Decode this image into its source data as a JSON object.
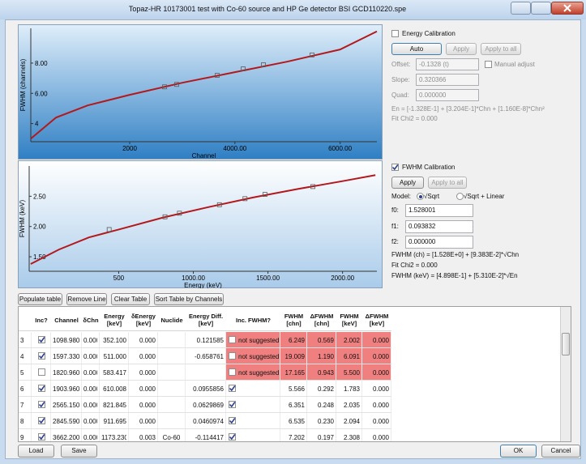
{
  "window": {
    "title": "Topaz-HR 10173001 test with Co-60 source and HP Ge detector BSI GCD110220.spe"
  },
  "plots": [
    {
      "type": "line",
      "y_label": "FWHM (channels)",
      "x_label": "Channel",
      "xlim": [
        120,
        6700
      ],
      "ylim": [
        2.8,
        10.3
      ],
      "xticks": [
        2000,
        {
          "value": 4000,
          "label": "4000.00"
        },
        {
          "value": 6000,
          "label": "6000.00"
        }
      ],
      "yticks": [
        4,
        {
          "value": 6,
          "label": "6.00"
        },
        {
          "value": 8,
          "label": "8.00"
        }
      ],
      "curve": {
        "x": [
          120,
          600,
          1200,
          2000,
          3000,
          4000,
          5000,
          6000,
          6700
        ],
        "y": [
          3.0,
          4.4,
          5.2,
          5.9,
          6.7,
          7.4,
          8.1,
          8.9,
          10.1
        ]
      },
      "points": {
        "x": [
          2663,
          2894,
          3664,
          4157,
          4543,
          5467
        ],
        "y": [
          6.43,
          6.59,
          7.19,
          7.62,
          7.89,
          8.54
        ]
      },
      "color": "#b3191c",
      "background": [
        "#dfeefa",
        "#2f7fc4"
      ]
    },
    {
      "type": "line",
      "y_label": "FWHM (keV)",
      "x_label": "Energy (keV)",
      "xlim": [
        -100,
        2230
      ],
      "ylim": [
        1.26,
        3.0
      ],
      "xticks": [
        500,
        {
          "value": 1000,
          "label": "1000.00"
        },
        {
          "value": 1500,
          "label": "1500.00"
        },
        {
          "value": 2000,
          "label": "2000.00"
        }
      ],
      "yticks": [
        {
          "value": 1.5,
          "label": "1.50"
        },
        {
          "value": 2,
          "label": "2.00"
        },
        {
          "value": 2.5,
          "label": "2.50"
        }
      ],
      "curve": {
        "x": [
          -90,
          100,
          300,
          500,
          800,
          1100,
          1400,
          1700,
          2000,
          2220
        ],
        "y": [
          1.38,
          1.62,
          1.82,
          1.95,
          2.15,
          2.32,
          2.48,
          2.62,
          2.75,
          2.85
        ]
      },
      "points": {
        "x": [
          436,
          810,
          907,
          1175,
          1346,
          1480,
          1801
        ],
        "y": [
          1.95,
          2.16,
          2.22,
          2.36,
          2.46,
          2.53,
          2.66
        ]
      },
      "color": "#b3191c",
      "background": [
        "#ffffff",
        "#a9cbea"
      ]
    }
  ],
  "energy_calibration": {
    "label": "Energy Calibration",
    "checked": false,
    "buttons": [
      "Auto",
      "Apply",
      "Apply to all"
    ],
    "offset_label": "Offset:",
    "offset": "-0.1328 (t)",
    "manual_label": "Manual adjust",
    "manual_checked": false,
    "slope_label": "Slope:",
    "slope": "0.320366",
    "quad_label": "Quad:",
    "quad": "0.000000",
    "formula": "En = [-1.328E-1] + [3.204E-1]*Chn + [1.160E-8]*Chn²",
    "chi": "Fit Chi2 = 0.000"
  },
  "fwhm_calibration": {
    "label": "FWHM Calibration",
    "checked": true,
    "buttons": [
      "Apply",
      "Apply to all"
    ],
    "model_label": "Model:",
    "models": [
      "√Sqrt",
      "√Sqrt + Linear"
    ],
    "selected_model": 0,
    "f0_label": "f0:",
    "f0": "1.528001",
    "f1_label": "f1:",
    "f1": "0.093832",
    "f2_label": "f2:",
    "f2": "0.000000",
    "formula_ch": "FWHM (ch) = [1.528E+0] + [9.383E-2]*√Chn",
    "chi": "Fit Chi2 = 0.000",
    "formula_kev": "FWHM (keV) = [4.898E-1] + [5.310E-2]*√En"
  },
  "toolbar": [
    "Populate table",
    "Remove Line",
    "Clear Table",
    "Sort Table by Channels"
  ],
  "table": {
    "columns": [
      "Inc?",
      "Channel",
      "δChn",
      "Energy [keV]",
      "δEnergy [keV]",
      "Nuclide",
      "Energy Diff. [keV]",
      "Inc. FWHM?",
      "FWHM [chn]",
      "ΔFWHM [chn]",
      "FWHM [keV]",
      "ΔFWHM [keV]"
    ],
    "rows": [
      {
        "flagged": true,
        "cells": [
          "3",
          true,
          "1098.980",
          "0.000",
          "352.100",
          "0.000",
          null,
          "0.121585",
          {
            "checked": false,
            "note": "not suggested"
          },
          "6.249",
          "0.569",
          "2.002",
          "0.000"
        ]
      },
      {
        "flagged": true,
        "cells": [
          "4",
          true,
          "1597.330",
          "0.000",
          "511.000",
          "0.000",
          null,
          "-0.658761",
          {
            "checked": false,
            "note": "not suggested"
          },
          "19.009",
          "1.190",
          "6.091",
          "0.000"
        ]
      },
      {
        "flagged": true,
        "cells": [
          "5",
          false,
          "1820.960",
          "0.000",
          "583.417",
          "0.000",
          null,
          null,
          {
            "checked": false,
            "note": "not suggested"
          },
          "17.165",
          "0.943",
          "5.500",
          "0.000"
        ]
      },
      {
        "flagged": false,
        "cells": [
          "6",
          true,
          "1903.960",
          "0.000",
          "610.008",
          "0.000",
          null,
          "0.0955856",
          {
            "checked": true
          },
          "5.566",
          "0.292",
          "1.783",
          "0.000"
        ]
      },
      {
        "flagged": false,
        "cells": [
          "7",
          true,
          "2565.150",
          "0.000",
          "821.845",
          "0.000",
          null,
          "0.0629869",
          {
            "checked": true
          },
          "6.351",
          "0.248",
          "2.035",
          "0.000"
        ]
      },
      {
        "flagged": false,
        "cells": [
          "8",
          true,
          "2845.590",
          "0.000",
          "911.695",
          "0.000",
          null,
          "0.0460974",
          {
            "checked": true
          },
          "6.535",
          "0.230",
          "2.094",
          "0.000"
        ]
      },
      {
        "flagged": false,
        "cells": [
          "9",
          true,
          "3662.200",
          "0.000",
          "1173.230",
          "0.003",
          "Co-60",
          "-0.114417",
          {
            "checked": true
          },
          "7.202",
          "0.197",
          "2.308",
          "0.000"
        ]
      }
    ]
  },
  "footer": {
    "left": [
      "Load",
      "Save"
    ],
    "right": [
      "OK",
      "Cancel"
    ]
  }
}
